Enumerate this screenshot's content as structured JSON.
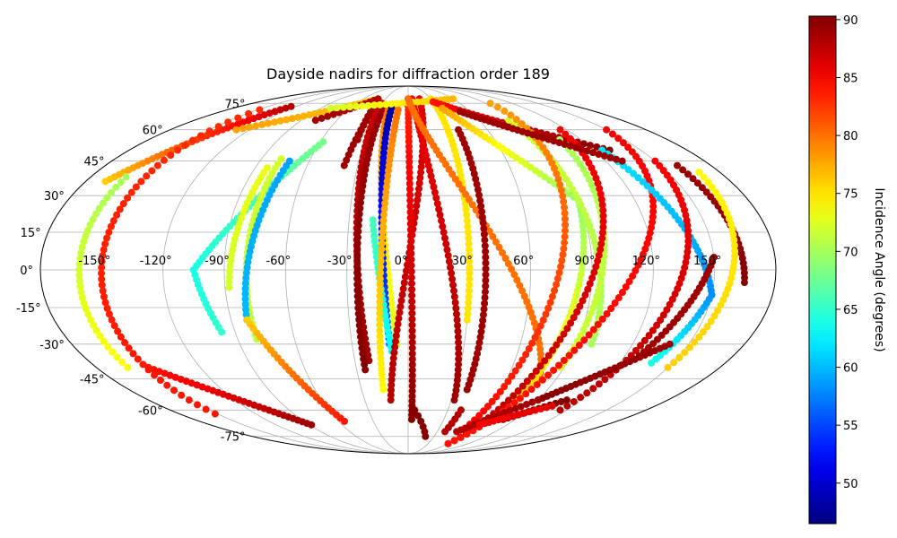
{
  "chart_data": {
    "type": "scatter",
    "projection": "mollweide",
    "title": "Dayside nadirs for diffraction order 189",
    "grid": true,
    "x_tick_labels": [
      "-150°",
      "-120°",
      "-90°",
      "-60°",
      "-30°",
      "0°",
      "30°",
      "60°",
      "90°",
      "120°",
      "150°"
    ],
    "x_ticks_deg": [
      -150,
      -120,
      -90,
      -60,
      -30,
      0,
      30,
      60,
      90,
      120,
      150
    ],
    "y_tick_labels": [
      "-75°",
      "-60°",
      "-45°",
      "-30°",
      "-15°",
      "0°",
      "15°",
      "30°",
      "45°",
      "60°",
      "75°"
    ],
    "y_ticks_deg": [
      -75,
      -60,
      -45,
      -30,
      -15,
      0,
      15,
      30,
      45,
      60,
      75
    ],
    "colorbar": {
      "label": "Incidence Angle (degrees)",
      "colormap": "jet",
      "range": [
        46.5,
        90.3
      ],
      "tick_values": [
        50,
        55,
        60,
        65,
        70,
        75,
        80,
        85,
        90
      ],
      "tick_labels": [
        "50",
        "55",
        "60",
        "65",
        "70",
        "75",
        "80",
        "85",
        "90"
      ]
    },
    "tracks": [
      {
        "lon0": -169,
        "lat0": 36,
        "lon1": -125,
        "lat1": 73,
        "inc0": 76,
        "inc1": 88
      },
      {
        "lon0": -148,
        "lat0": 71,
        "lon1": -152,
        "lat1": -62,
        "inc0": 83,
        "inc1": 84
      },
      {
        "lon0": -160,
        "lat0": 38,
        "lon1": -162,
        "lat1": -40,
        "inc0": 70,
        "inc1": 74
      },
      {
        "lon0": -150,
        "lat0": -40,
        "lon1": -88,
        "lat1": -68,
        "inc0": 84,
        "inc1": 89
      },
      {
        "lon0": -130,
        "lat0": 60,
        "lon1": -40,
        "lat1": 78,
        "inc0": 78,
        "inc1": 76
      },
      {
        "lon0": -78,
        "lat0": 65,
        "lon1": -40,
        "lat1": 78,
        "inc0": 89,
        "inc1": 88
      },
      {
        "lon0": -58,
        "lat0": 54,
        "lon1": -105,
        "lat1": 0,
        "inc0": 68,
        "inc1": 64
      },
      {
        "lon0": -105,
        "lat0": 0,
        "lon1": -97,
        "lat1": -25,
        "inc0": 64,
        "inc1": 65
      },
      {
        "lon0": -78,
        "lat0": 46,
        "lon1": -80,
        "lat1": -28,
        "inc0": 72,
        "inc1": 71
      },
      {
        "lon0": -83,
        "lat0": 42,
        "lon1": -88,
        "lat1": -7,
        "inc0": 73,
        "inc1": 72
      },
      {
        "lon0": -72,
        "lat0": 45,
        "lon1": -82,
        "lat1": -20,
        "inc0": 59,
        "inc1": 60
      },
      {
        "lon0": -82,
        "lat0": -20,
        "lon1": -55,
        "lat1": -66,
        "inc0": 76,
        "inc1": 84
      },
      {
        "lon0": -34,
        "lat0": 72,
        "lon1": -38,
        "lat1": 43,
        "inc0": 89,
        "inc1": 89
      },
      {
        "lon0": -36,
        "lat0": 72,
        "lon1": -35,
        "lat1": 55,
        "inc0": 89,
        "inc1": 89
      },
      {
        "lon0": -30,
        "lat0": 75,
        "lon1": -22,
        "lat1": -37,
        "inc0": 87,
        "inc1": 89
      },
      {
        "lon0": -25,
        "lat0": 74,
        "lon1": -25,
        "lat1": -41,
        "inc0": 89,
        "inc1": 90
      },
      {
        "lon0": -20,
        "lat0": 73,
        "lon1": -6,
        "lat1": -30,
        "inc0": 80,
        "inc1": 72
      },
      {
        "lon0": -17,
        "lat0": 72,
        "lon1": -10,
        "lat1": -30,
        "inc0": 48,
        "inc1": 56
      },
      {
        "lon0": -18,
        "lat0": 20,
        "lon1": -9,
        "lat1": -33,
        "inc0": 66,
        "inc1": 63
      },
      {
        "lon0": -10,
        "lat0": 71,
        "lon1": -16,
        "lat1": -50,
        "inc0": 80,
        "inc1": 74
      },
      {
        "lon0": 15,
        "lat0": 78,
        "lon1": -12,
        "lat1": -55,
        "inc0": 86,
        "inc1": 88
      },
      {
        "lon0": 0,
        "lat0": 78,
        "lon1": 3,
        "lat1": -65,
        "inc0": 83,
        "inc1": 90
      },
      {
        "lon0": 5,
        "lat0": 78,
        "lon1": 32,
        "lat1": -55,
        "inc0": 85,
        "inc1": 89
      },
      {
        "lon0": -80,
        "lat0": 72,
        "lon1": 60,
        "lat1": 78,
        "inc0": 72,
        "inc1": 77
      },
      {
        "lon0": 30,
        "lat0": 78,
        "lon1": 30,
        "lat1": -20,
        "inc0": 75,
        "inc1": 75
      },
      {
        "lon0": 0,
        "lat0": 78,
        "lon1": 80,
        "lat1": -45,
        "inc0": 80,
        "inc1": 80
      },
      {
        "lon0": 30,
        "lat0": 76,
        "lon1": 130,
        "lat1": 50,
        "inc0": 84,
        "inc1": 90
      },
      {
        "lon0": 35,
        "lat0": 72,
        "lon1": 90,
        "lat1": 28,
        "inc0": 78,
        "inc1": 69
      },
      {
        "lon0": 90,
        "lat0": 28,
        "lon1": 75,
        "lat1": -55,
        "inc0": 69,
        "inc1": 76
      },
      {
        "lon0": 85,
        "lat0": 65,
        "lon1": 98,
        "lat1": -30,
        "inc0": 72,
        "inc1": 70
      },
      {
        "lon0": 95,
        "lat0": 75,
        "lon1": 55,
        "lat1": -70,
        "inc0": 78,
        "inc1": 85
      },
      {
        "lon0": 105,
        "lat0": 55,
        "lon1": 88,
        "lat1": -40,
        "inc0": 70,
        "inc1": 72
      },
      {
        "lon0": 115,
        "lat0": 60,
        "lon1": 60,
        "lat1": -80,
        "inc0": 85,
        "inc1": 88
      },
      {
        "lon0": 150,
        "lat0": 60,
        "lon1": 60,
        "lat1": -80,
        "inc0": 85,
        "inc1": 84
      },
      {
        "lon0": 125,
        "lat0": 50,
        "lon1": 150,
        "lat1": -10,
        "inc0": 62,
        "inc1": 58
      },
      {
        "lon0": 150,
        "lat0": -10,
        "lon1": 138,
        "lat1": -38,
        "inc0": 58,
        "inc1": 64
      },
      {
        "lon0": 150,
        "lat0": 45,
        "lon1": 115,
        "lat1": -60,
        "inc0": 85,
        "inc1": 88
      },
      {
        "lon0": 160,
        "lat0": 43,
        "lon1": 165,
        "lat1": -5,
        "inc0": 89,
        "inc1": 90
      },
      {
        "lon0": 168,
        "lat0": 40,
        "lon1": 150,
        "lat1": -40,
        "inc0": 74,
        "inc1": 76
      },
      {
        "lon0": 150,
        "lat0": 5,
        "lon1": 128,
        "lat1": -35,
        "inc0": 89,
        "inc1": 89
      },
      {
        "lon0": 140,
        "lat0": -30,
        "lon1": 90,
        "lat1": -55,
        "inc0": 89,
        "inc1": 90
      },
      {
        "lon0": 90,
        "lat0": -55,
        "lon1": 50,
        "lat1": -72,
        "inc0": 89,
        "inc1": 88
      },
      {
        "lon0": 110,
        "lat0": -55,
        "lon1": 80,
        "lat1": -65,
        "inc0": 90,
        "inc1": 90
      },
      {
        "lon0": 105,
        "lat0": -58,
        "lon1": 65,
        "lat1": -68,
        "inc0": 86,
        "inc1": 85
      },
      {
        "lon0": 40,
        "lat0": -60,
        "lon1": 38,
        "lat1": -72,
        "inc0": 88,
        "inc1": 88
      },
      {
        "lon0": 5,
        "lat0": -60,
        "lon1": 20,
        "lat1": -75,
        "inc0": 90,
        "inc1": 90
      },
      {
        "lon0": 38,
        "lat0": 60,
        "lon1": 38,
        "lat1": -50,
        "inc0": 89,
        "inc1": 89
      },
      {
        "lon0": 50,
        "lat0": 70,
        "lon1": 130,
        "lat1": 45,
        "inc0": 89,
        "inc1": 89
      }
    ]
  }
}
